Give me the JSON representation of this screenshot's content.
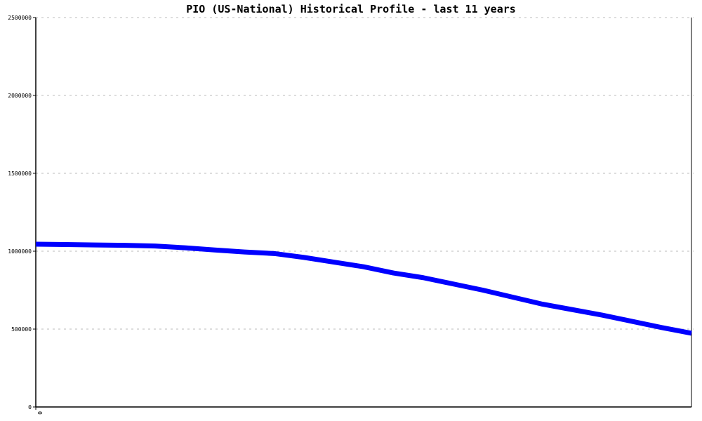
{
  "chart_data": {
    "type": "line",
    "title": "PIO (US-National) Historical Profile - last 11 years",
    "xlabel": "",
    "ylabel": "",
    "ylim": [
      0,
      2500000
    ],
    "yticks": [
      "0",
      "500000",
      "1000000",
      "1500000",
      "2000000",
      "2500000"
    ],
    "xticks": [
      "0"
    ],
    "grid": true,
    "series": [
      {
        "color": "#0000ff",
        "values": [
          1045000,
          1043000,
          1040000,
          1038000,
          1033000,
          1022000,
          1008000,
          995000,
          985000,
          960000,
          930000,
          900000,
          860000,
          830000,
          790000,
          750000,
          705000,
          660000,
          625000,
          590000,
          550000,
          510000,
          473000
        ]
      }
    ]
  }
}
